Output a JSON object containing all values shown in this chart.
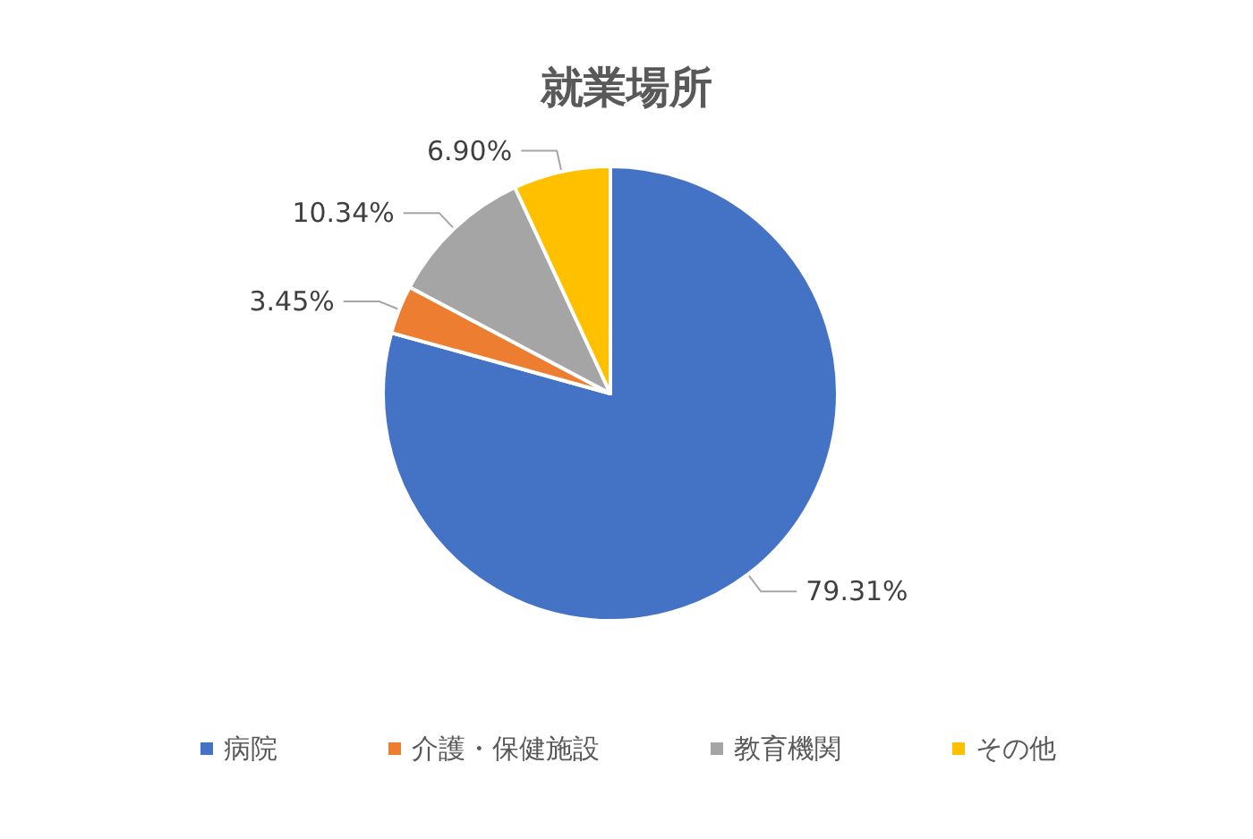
{
  "chart_data": {
    "type": "pie",
    "title": "就業場所",
    "categories": [
      "病院",
      "介護・保健施設",
      "教育機関",
      "その他"
    ],
    "values": [
      79.31,
      3.45,
      10.34,
      6.9
    ],
    "value_labels": [
      "79.31%",
      "3.45%",
      "10.34%",
      "6.90%"
    ],
    "colors": [
      "#4472c4",
      "#ed7d31",
      "#a5a5a5",
      "#ffc000"
    ],
    "legend": "bottom"
  }
}
